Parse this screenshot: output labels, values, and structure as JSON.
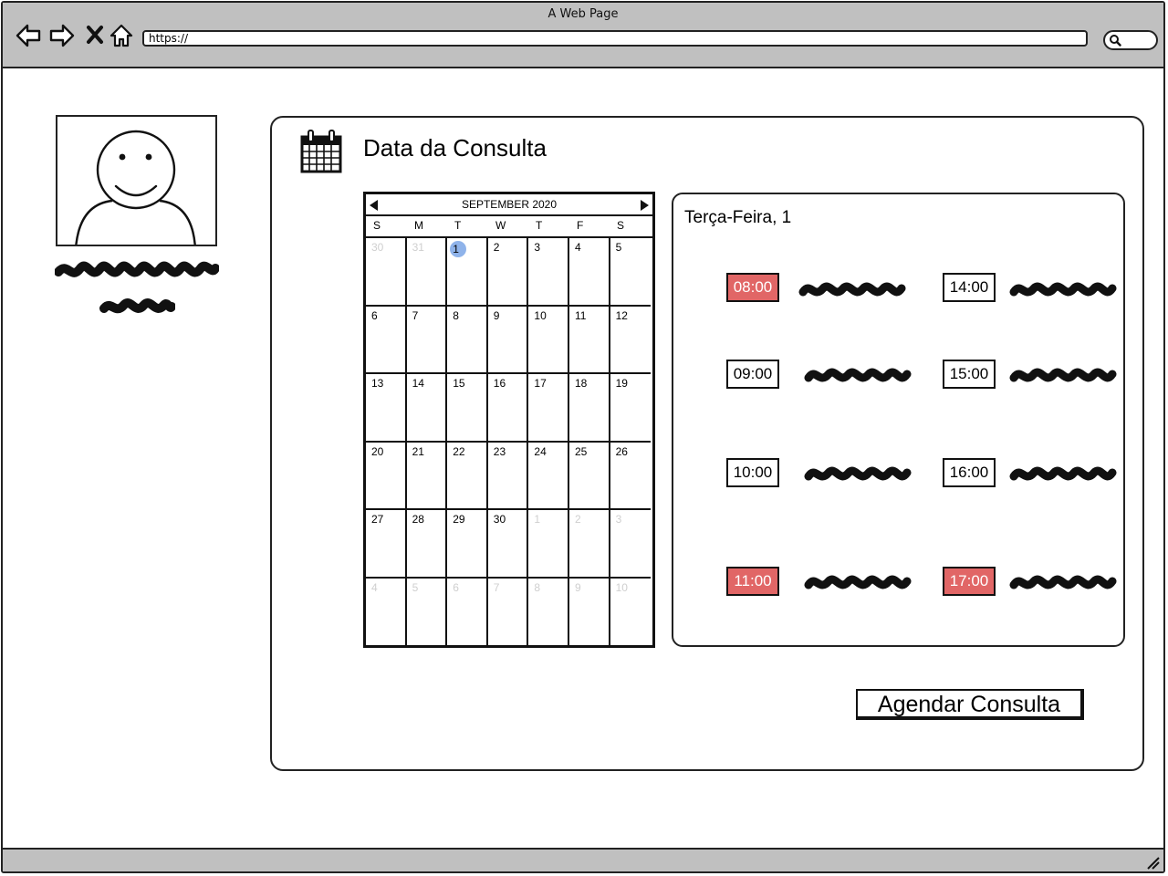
{
  "window": {
    "title": "A Web Page",
    "url": "https://"
  },
  "toolbar": {
    "back_icon": "back-arrow-icon",
    "forward_icon": "forward-arrow-icon",
    "stop_icon": "close-icon",
    "home_icon": "home-icon",
    "search_icon": "search-icon"
  },
  "page": {
    "title": "Data da Consulta",
    "title_icon": "calendar-icon"
  },
  "calendar": {
    "month_label": "SEPTEMBER 2020",
    "weekdays": [
      "S",
      "M",
      "T",
      "W",
      "T",
      "F",
      "S"
    ],
    "weeks": [
      [
        "30",
        "31",
        "1",
        "2",
        "3",
        "4",
        "5"
      ],
      [
        "6",
        "7",
        "8",
        "9",
        "10",
        "11",
        "12"
      ],
      [
        "13",
        "14",
        "15",
        "16",
        "17",
        "18",
        "19"
      ],
      [
        "20",
        "21",
        "22",
        "23",
        "24",
        "25",
        "26"
      ],
      [
        "27",
        "28",
        "29",
        "30",
        "1",
        "2",
        "3"
      ],
      [
        "4",
        "5",
        "6",
        "7",
        "8",
        "9",
        "10"
      ]
    ],
    "selected_day": "1"
  },
  "schedule": {
    "day_label": "Terça-Feira, 1",
    "slots": [
      {
        "time": "08:00",
        "status": "busy"
      },
      {
        "time": "09:00",
        "status": "free"
      },
      {
        "time": "10:00",
        "status": "free"
      },
      {
        "time": "11:00",
        "status": "busy"
      },
      {
        "time": "14:00",
        "status": "free"
      },
      {
        "time": "15:00",
        "status": "free"
      },
      {
        "time": "16:00",
        "status": "free"
      },
      {
        "time": "17:00",
        "status": "busy"
      }
    ]
  },
  "actions": {
    "submit_label": "Agendar Consulta"
  },
  "colors": {
    "busy": "#e16666",
    "selected": "#8fb3ea",
    "chrome": "#c0c0c0"
  }
}
